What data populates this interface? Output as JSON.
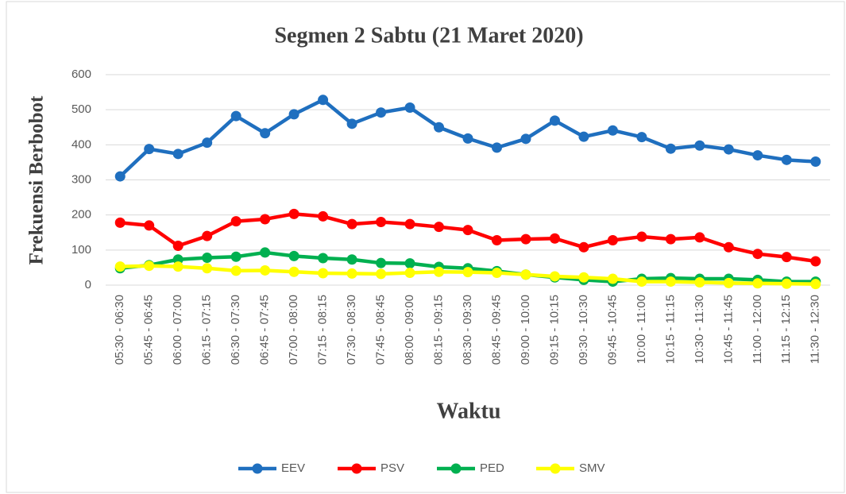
{
  "chart_data": {
    "type": "line",
    "title": "Segmen 2 Sabtu (21 Maret 2020)",
    "x_label": "Waktu",
    "y_label": "Frekuensi Berbobot",
    "categories": [
      "05:30 - 06:30",
      "05:45 - 06:45",
      "06:00 - 07:00",
      "06:15 - 07:15",
      "06:30 - 07:30",
      "06:45 - 07:45",
      "07:00 - 08:00",
      "07:15 - 08:15",
      "07:30 - 08:30",
      "07:45 - 08:45",
      "08:00 - 09:00",
      "08:15 - 09:15",
      "08:30 - 09:30",
      "08:45 - 09:45",
      "09:00 - 10:00",
      "09:15 - 10:15",
      "09:30 - 10:30",
      "09:45 - 10:45",
      "10:00 - 11:00",
      "10:15 - 11:15",
      "10:30 - 11:30",
      "10:45 - 11:45",
      "11:00 - 12:00",
      "11:15 - 12:15",
      "11:30 - 12:30"
    ],
    "series": [
      {
        "name": "EEV",
        "color": "#1f6fbf",
        "values": [
          310,
          388,
          374,
          406,
          482,
          433,
          487,
          528,
          460,
          492,
          506,
          450,
          418,
          392,
          417,
          469,
          423,
          441,
          422,
          389,
          398,
          387,
          370,
          357,
          352
        ]
      },
      {
        "name": "PSV",
        "color": "#ff0000",
        "values": [
          178,
          170,
          112,
          140,
          182,
          188,
          203,
          196,
          174,
          180,
          174,
          166,
          157,
          128,
          131,
          133,
          108,
          128,
          138,
          131,
          136,
          108,
          89,
          80,
          68
        ]
      },
      {
        "name": "PED",
        "color": "#00b050",
        "values": [
          48,
          57,
          73,
          78,
          81,
          93,
          83,
          77,
          73,
          63,
          62,
          52,
          48,
          40,
          30,
          22,
          15,
          10,
          18,
          20,
          18,
          18,
          15,
          10,
          10
        ]
      },
      {
        "name": "SMV",
        "color": "#ffff00",
        "values": [
          53,
          55,
          53,
          48,
          41,
          42,
          38,
          34,
          33,
          32,
          35,
          38,
          37,
          35,
          30,
          25,
          22,
          18,
          10,
          10,
          8,
          6,
          5,
          4,
          3
        ]
      }
    ],
    "ylim": [
      0,
      600
    ],
    "yticks": [
      0,
      100,
      200,
      300,
      400,
      500,
      600
    ],
    "grid": true,
    "legend": "bottom"
  }
}
